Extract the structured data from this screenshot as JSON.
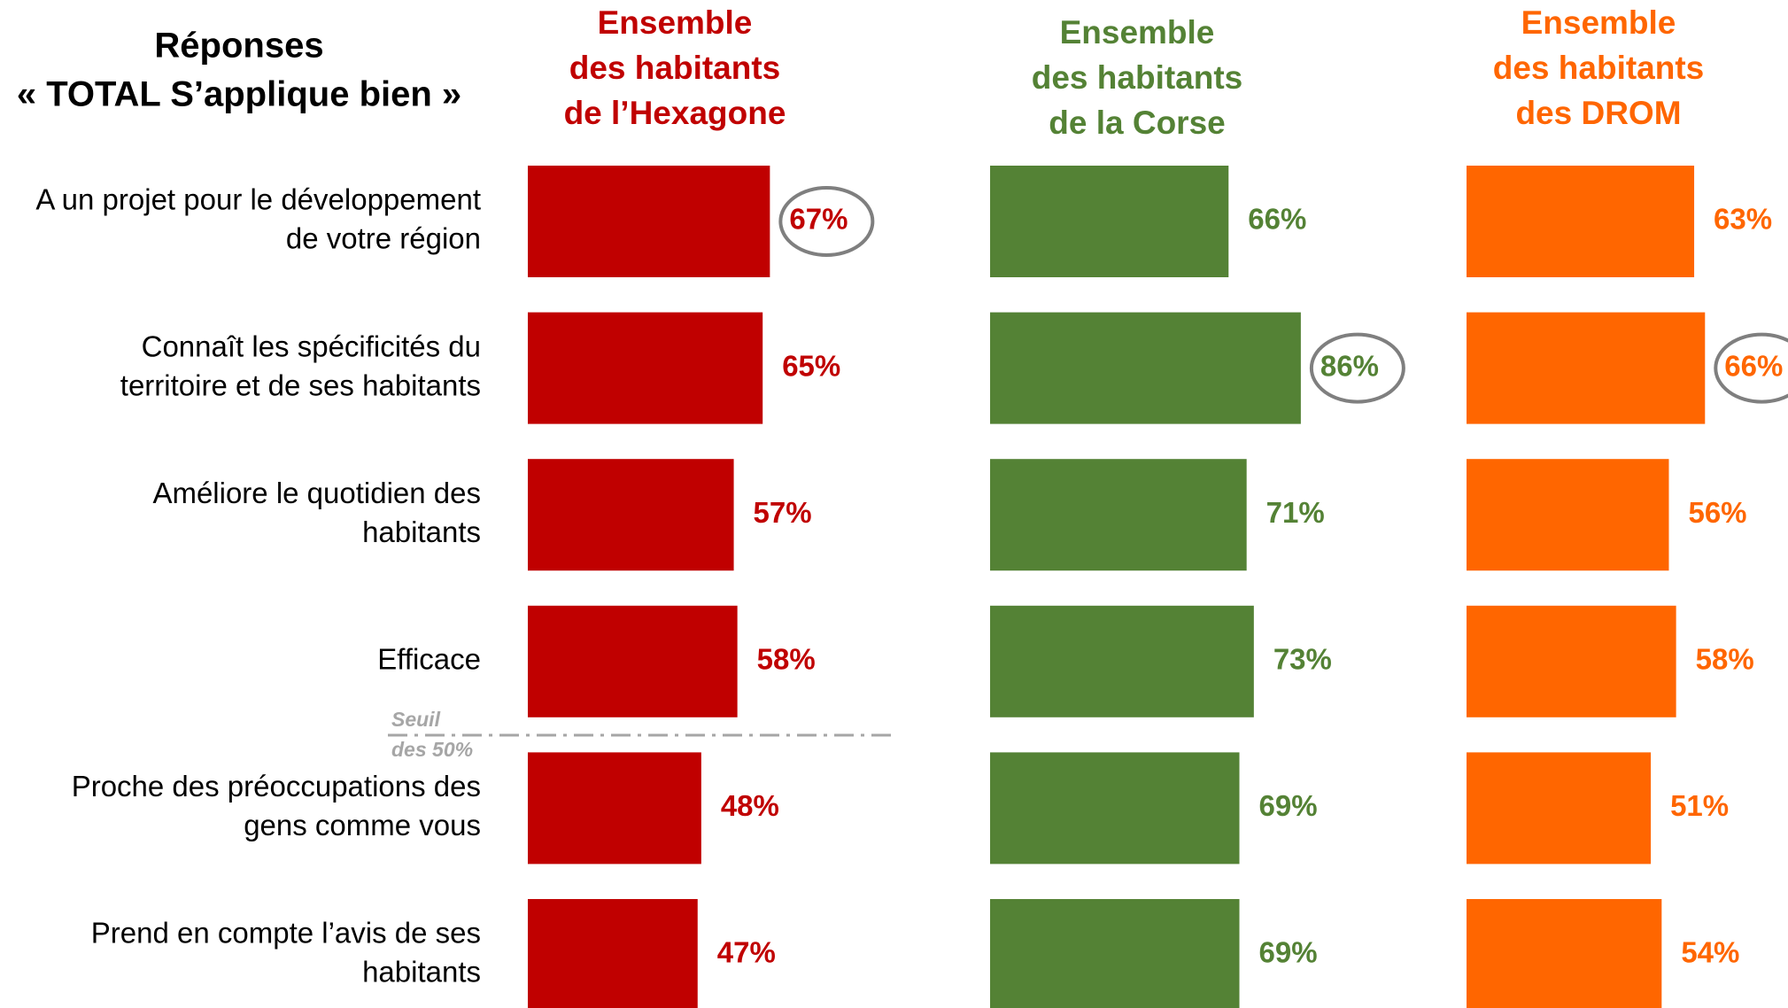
{
  "chart_data": {
    "type": "bar",
    "title": [
      "Réponses",
      "« TOTAL S’applique bien »"
    ],
    "categories": [
      [
        "A un projet pour le développement",
        "de votre région"
      ],
      [
        "Connaît les spécificités du",
        "territoire et de ses habitants"
      ],
      [
        "Améliore le quotidien des",
        "habitants"
      ],
      [
        "Efficace"
      ],
      [
        "Proche des préoccupations des",
        "gens comme vous"
      ],
      [
        "Prend en compte l’avis de ses",
        "habitants"
      ]
    ],
    "series": [
      {
        "name": [
          "Ensemble",
          "des habitants",
          "de l’Hexagone"
        ],
        "color": "#c00000",
        "values": [
          67,
          65,
          57,
          58,
          48,
          47
        ],
        "value_labels": [
          "67%",
          "65%",
          "57%",
          "58%",
          "48%",
          "47%"
        ],
        "highlight": 0
      },
      {
        "name": [
          "Ensemble",
          "des habitants",
          "de la Corse"
        ],
        "color": "#548235",
        "values": [
          66,
          86,
          71,
          73,
          69,
          69
        ],
        "value_labels": [
          "66%",
          "86%",
          "71%",
          "73%",
          "69%",
          "69%"
        ],
        "highlight": 1
      },
      {
        "name": [
          "Ensemble",
          "des habitants",
          "des DROM"
        ],
        "color": "#ff6600",
        "values": [
          63,
          66,
          56,
          58,
          51,
          54
        ],
        "value_labels": [
          "63%",
          "66%",
          "56%",
          "58%",
          "51%",
          "54%"
        ],
        "highlight": 1
      }
    ],
    "annotation": [
      "Seuil",
      "des 50%"
    ]
  }
}
